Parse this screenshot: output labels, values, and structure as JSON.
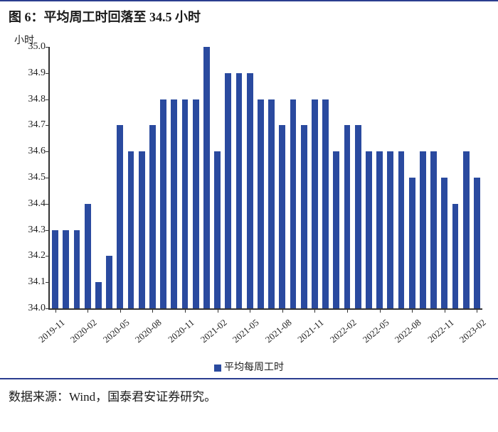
{
  "title": "图 6：平均周工时回落至 34.5 小时",
  "source": "数据来源：Wind，国泰君安证券研究。",
  "chart": {
    "type": "bar",
    "y_unit_label": "小时",
    "ylim": [
      34.0,
      35.0
    ],
    "ytick_step": 0.1,
    "yticks": [
      "34.0",
      "34.1",
      "34.2",
      "34.3",
      "34.4",
      "34.5",
      "34.6",
      "34.7",
      "34.8",
      "34.9",
      "35.0"
    ],
    "bar_color": "#2a4a9f",
    "axis_color": "#333333",
    "background_color": "#ffffff",
    "bar_width_ratio": 0.58,
    "label_fontsize": 14,
    "title_fontsize": 18,
    "legend": {
      "label": "平均每周工时",
      "color": "#2a4a9f"
    },
    "categories": [
      "2019-11",
      "2019-12",
      "2020-01",
      "2020-02",
      "2020-03",
      "2020-04",
      "2020-05",
      "2020-06",
      "2020-07",
      "2020-08",
      "2020-09",
      "2020-10",
      "2020-11",
      "2020-12",
      "2021-01",
      "2021-02",
      "2021-03",
      "2021-04",
      "2021-05",
      "2021-06",
      "2021-07",
      "2021-08",
      "2021-09",
      "2021-10",
      "2021-11",
      "2021-12",
      "2022-01",
      "2022-02",
      "2022-03",
      "2022-04",
      "2022-05",
      "2022-06",
      "2022-07",
      "2022-08",
      "2022-09",
      "2022-10",
      "2022-11",
      "2022-12",
      "2023-01",
      "2023-02"
    ],
    "values": [
      34.3,
      34.3,
      34.3,
      34.4,
      34.1,
      34.2,
      34.7,
      34.6,
      34.6,
      34.7,
      34.8,
      34.8,
      34.8,
      34.8,
      35.0,
      34.6,
      34.9,
      34.9,
      34.9,
      34.8,
      34.8,
      34.7,
      34.8,
      34.7,
      34.8,
      34.8,
      34.6,
      34.7,
      34.7,
      34.6,
      34.6,
      34.6,
      34.6,
      34.5,
      34.6,
      34.6,
      34.5,
      34.4,
      34.6,
      34.5
    ],
    "x_visible_labels": [
      "2019-11",
      "2020-02",
      "2020-05",
      "2020-08",
      "2020-11",
      "2021-02",
      "2021-05",
      "2021-08",
      "2021-11",
      "2022-02",
      "2022-05",
      "2022-08",
      "2022-11",
      "2023-02"
    ]
  }
}
